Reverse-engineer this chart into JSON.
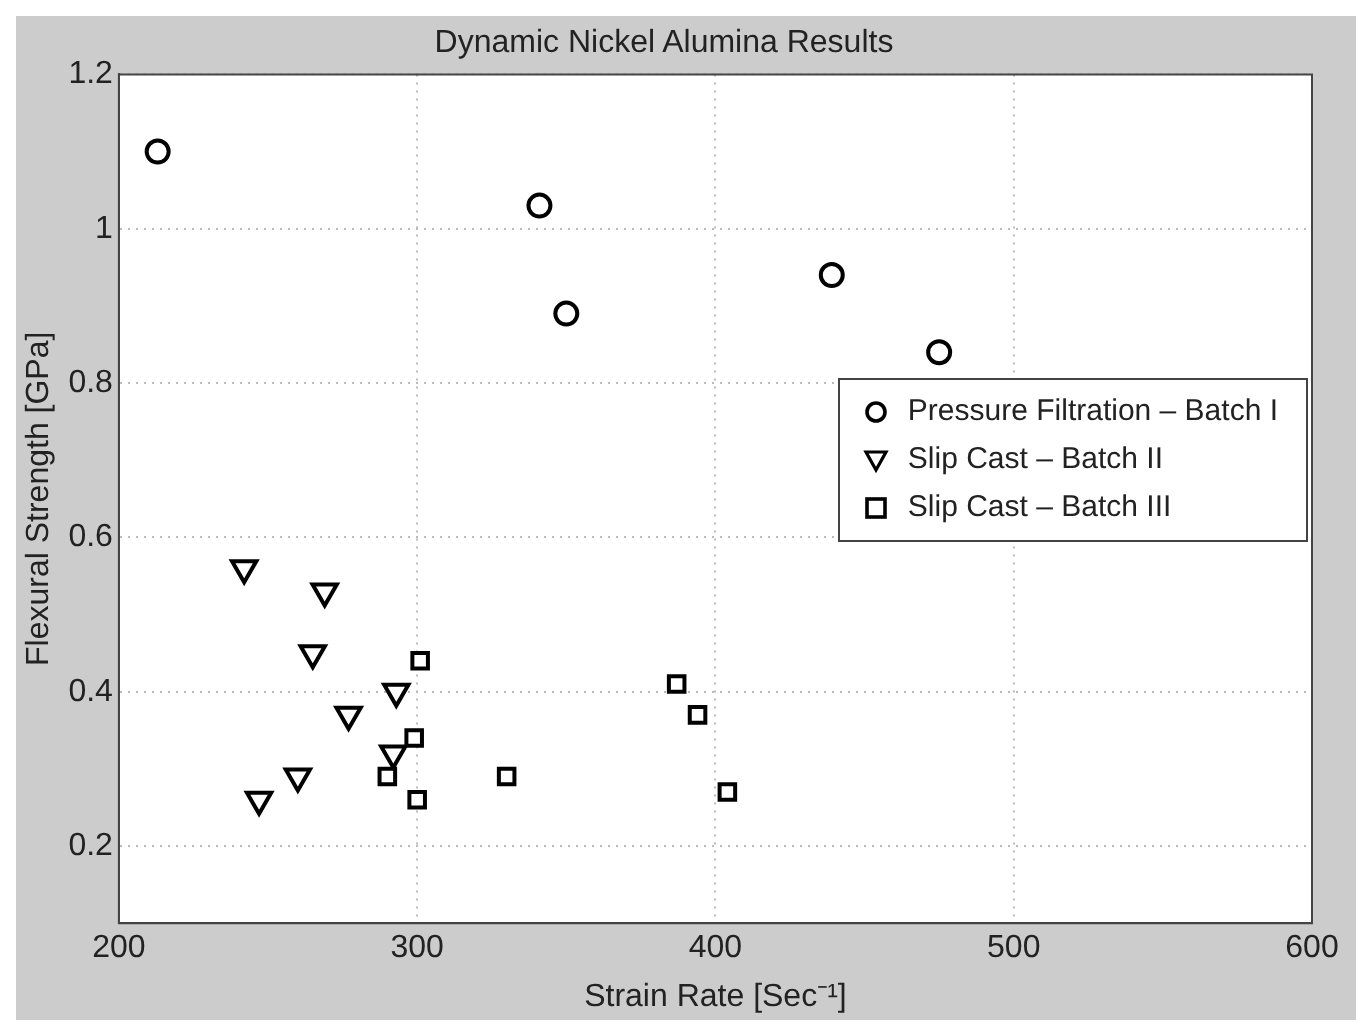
{
  "chart_data": {
    "type": "scatter",
    "title": "Dynamic Nickel Alumina Results",
    "xlabel": "Strain Rate [Sec⁻¹]",
    "ylabel": "Flexural Strength [GPa]",
    "xlim": [
      200,
      600
    ],
    "xticks": [
      200,
      300,
      400,
      500,
      600
    ],
    "ylim": [
      0.1,
      1.2
    ],
    "yticks": [
      0.2,
      0.4,
      0.6,
      0.8,
      1,
      1.2
    ],
    "grid": true,
    "legend": "right",
    "series": [
      {
        "name": "Pressure Filtration – Batch I",
        "color": "#000000",
        "marker": "circle",
        "x": [
          213,
          341,
          350,
          439,
          475
        ],
        "values": [
          1.1,
          1.03,
          0.89,
          0.94,
          0.84
        ]
      },
      {
        "name": "Slip Cast – Batch II",
        "color": "#000000",
        "marker": "triangle",
        "x": [
          242,
          269,
          265,
          277,
          293,
          292,
          260,
          247
        ],
        "values": [
          0.56,
          0.53,
          0.45,
          0.37,
          0.4,
          0.32,
          0.29,
          0.26
        ]
      },
      {
        "name": "Slip Cast – Batch III",
        "color": "#000000",
        "marker": "square",
        "x": [
          301,
          299,
          290,
          300,
          330,
          387,
          394,
          404
        ],
        "values": [
          0.44,
          0.34,
          0.29,
          0.26,
          0.29,
          0.41,
          0.37,
          0.27
        ]
      }
    ]
  }
}
